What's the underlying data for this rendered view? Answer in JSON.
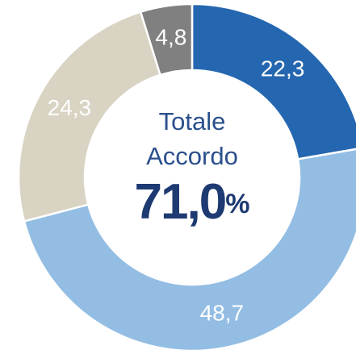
{
  "chart_data": {
    "type": "donut",
    "categories": [
      null,
      null,
      null,
      null
    ],
    "values": [
      22.3,
      48.7,
      24.3,
      4.8
    ],
    "value_labels": [
      "22,3",
      "48,7",
      "24,3",
      "4,8"
    ],
    "colors": [
      "#2466b0",
      "#93bde3",
      "#d9d3c3",
      "#808080"
    ],
    "center_lines": [
      "Totale",
      "Accordo"
    ],
    "center_value": "71,0",
    "center_unit": "%"
  }
}
